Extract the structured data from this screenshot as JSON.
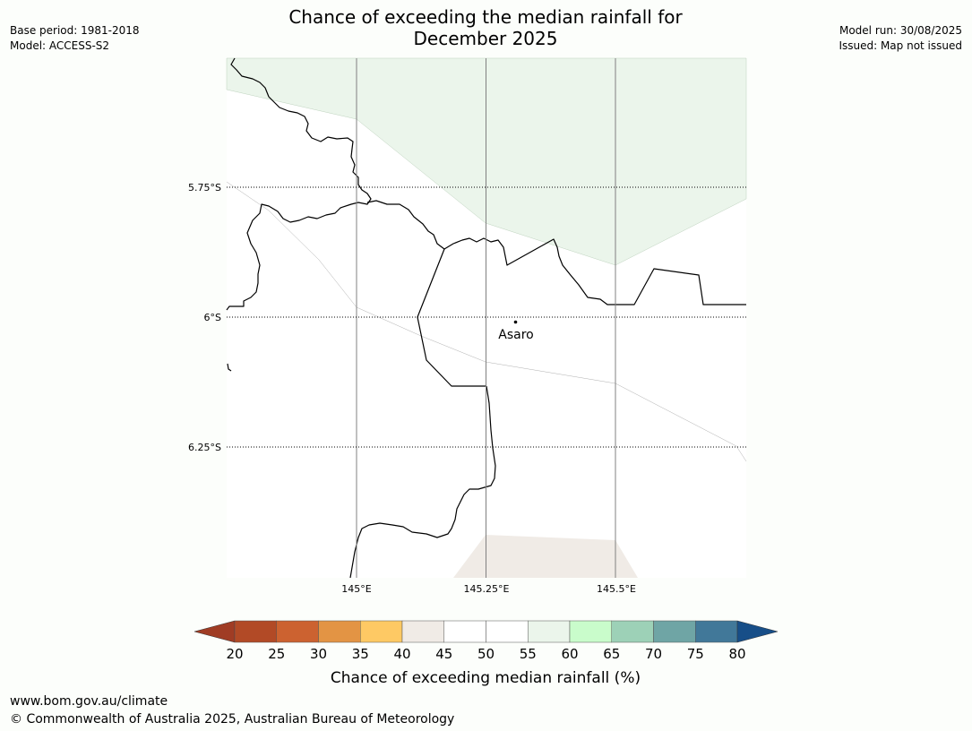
{
  "header": {
    "title_line1": "Chance of exceeding the median rainfall for",
    "title_line2": "December 2025",
    "base_period": "Base period: 1981-2018",
    "model": "Model: ACCESS-S2",
    "model_run": "Model run: 30/08/2025",
    "issued": "Issued: Map not issued"
  },
  "map": {
    "lat_labels": [
      "5.75°S",
      "6°S",
      "6.25°S"
    ],
    "lon_labels": [
      "145°E",
      "145.25°E",
      "145.5°E"
    ],
    "place": {
      "name": "Asaro"
    }
  },
  "colorbar": {
    "ticks": [
      "20",
      "25",
      "30",
      "35",
      "40",
      "45",
      "50",
      "55",
      "60",
      "65",
      "70",
      "75",
      "80"
    ],
    "colors": [
      "#a03c24",
      "#b24a26",
      "#cc6230",
      "#e39444",
      "#fec964",
      "#f0ebe6",
      "#ffffff",
      "#ffffff",
      "#ebf5eb",
      "#c9fccb",
      "#9dd1b7",
      "#6fa5a5",
      "#417899",
      "#174e88"
    ],
    "label": "Chance of exceeding median rainfall (%)"
  },
  "footer": {
    "url": "www.bom.gov.au/climate",
    "copyright": "© Commonwealth of Australia 2025, Australian Bureau of Meteorology"
  }
}
